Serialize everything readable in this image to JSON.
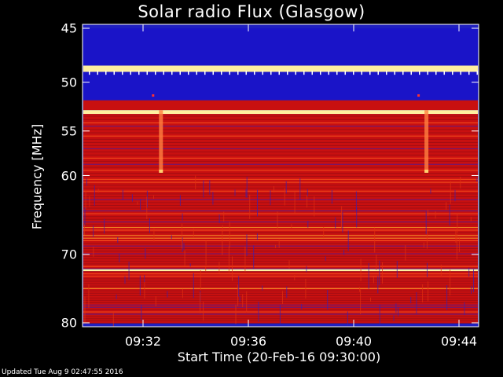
{
  "title": "Solar radio Flux (Glasgow)",
  "footer": "Updated Tue Aug  9 02:47:55 2016",
  "chart_data": {
    "type": "heatmap",
    "title": "Solar radio Flux (Glasgow)",
    "xlabel": "Start Time (20-Feb-16 09:30:00)",
    "ylabel": "Frequency [MHz]",
    "xlim": [
      "09:30",
      "09:45"
    ],
    "ylim": [
      80,
      45
    ],
    "yscale": "log",
    "x_ticks": [
      "09:32",
      "09:36",
      "09:40",
      "09:44"
    ],
    "y_ticks": [
      45,
      50,
      55,
      60,
      70,
      80
    ],
    "colors": {
      "background": "#000000",
      "frame": "#ffffff",
      "low": "#1010c8",
      "mid": "#d01010",
      "high": "#ffe060"
    },
    "frequency_bands": [
      {
        "from": 45,
        "to": 46.2,
        "level": "low"
      },
      {
        "from": 46.2,
        "to": 48.4,
        "level": "low"
      },
      {
        "from": 48.4,
        "to": 49.0,
        "level": "high"
      },
      {
        "from": 49.0,
        "to": 51.8,
        "level": "low"
      },
      {
        "from": 51.8,
        "to": 52.8,
        "level": "mid"
      },
      {
        "from": 52.8,
        "to": 53.2,
        "level": "high"
      },
      {
        "from": 53.2,
        "to": 60.0,
        "level": "mid"
      },
      {
        "from": 60.0,
        "to": 72.0,
        "level": "mid"
      },
      {
        "from": 72.0,
        "to": 72.4,
        "level": "high"
      },
      {
        "from": 72.4,
        "to": 80.0,
        "level": "mid"
      }
    ],
    "bursts": [
      {
        "time": "09:32:40",
        "from": 52.8,
        "to": 59.5
      },
      {
        "time": "09:42:45",
        "from": 52.8,
        "to": 59.5
      }
    ]
  }
}
